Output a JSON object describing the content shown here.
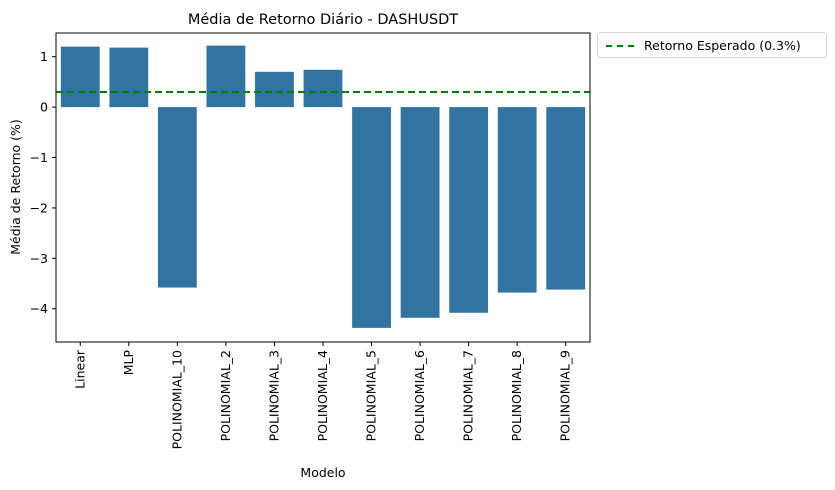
{
  "chart_data": {
    "type": "bar",
    "title": "Média de Retorno Diário - DASHUSDT",
    "xlabel": "Modelo",
    "ylabel": "Média de Retorno (%)",
    "categories": [
      "Linear",
      "MLP",
      "POLINOMIAL_10",
      "POLINOMIAL_2",
      "POLINOMIAL_3",
      "POLINOMIAL_4",
      "POLINOMIAL_5",
      "POLINOMIAL_6",
      "POLINOMIAL_7",
      "POLINOMIAL_8",
      "POLINOMIAL_9"
    ],
    "values": [
      1.2,
      1.18,
      -3.58,
      1.22,
      0.7,
      0.74,
      -4.38,
      -4.18,
      -4.08,
      -3.68,
      -3.62
    ],
    "yticks": [
      1,
      0,
      -1,
      -2,
      -3,
      -4
    ],
    "ytick_labels": [
      "1",
      "0",
      "−1",
      "−2",
      "−3",
      "−4"
    ],
    "ylim": [
      -4.66,
      1.47
    ],
    "bar_color": "#3274a1",
    "reference_line": {
      "value": 0.3,
      "label": "Retorno Esperado (0.3%)",
      "color": "#008000",
      "style": "dashed"
    },
    "legend": {
      "entries": [
        "Retorno Esperado (0.3%)"
      ],
      "placement": "outside upper right"
    },
    "grid": false
  }
}
